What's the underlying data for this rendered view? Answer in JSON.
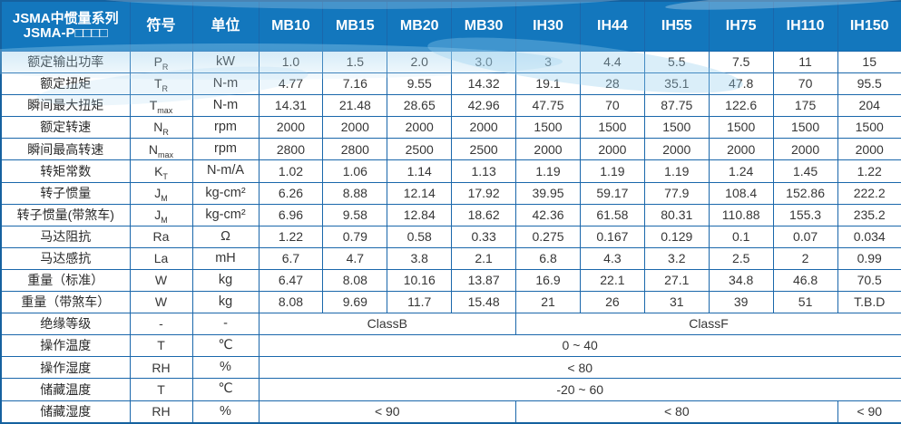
{
  "table": {
    "header": {
      "series_title_line1": "JSMA中惯量系列",
      "series_title_line2": "JSMA-P□□□□",
      "symbol_col": "符号",
      "unit_col": "单位",
      "models": [
        "MB10",
        "MB15",
        "MB20",
        "MB30",
        "IH30",
        "IH44",
        "IH55",
        "IH75",
        "IH110",
        "IH150"
      ]
    },
    "rows": [
      {
        "label": "额定输出功率",
        "symbol": {
          "base": "P",
          "sub": "R"
        },
        "unit": "kW",
        "cells": [
          {
            "t": "1.0"
          },
          {
            "t": "1.5"
          },
          {
            "t": "2.0"
          },
          {
            "t": "3.0"
          },
          {
            "t": "3"
          },
          {
            "t": "4.4"
          },
          {
            "t": "5.5"
          },
          {
            "t": "7.5"
          },
          {
            "t": "11"
          },
          {
            "t": "15"
          }
        ]
      },
      {
        "label": "额定扭矩",
        "symbol": {
          "base": "T",
          "sub": "R"
        },
        "unit": "N-m",
        "cells": [
          {
            "t": "4.77"
          },
          {
            "t": "7.16"
          },
          {
            "t": "9.55"
          },
          {
            "t": "14.32"
          },
          {
            "t": "19.1"
          },
          {
            "t": "28"
          },
          {
            "t": "35.1"
          },
          {
            "t": "47.8"
          },
          {
            "t": "70"
          },
          {
            "t": "95.5"
          }
        ]
      },
      {
        "label": "瞬间最大扭矩",
        "symbol": {
          "base": "T",
          "sub": "max"
        },
        "unit": "N-m",
        "cells": [
          {
            "t": "14.31"
          },
          {
            "t": "21.48"
          },
          {
            "t": "28.65"
          },
          {
            "t": "42.96"
          },
          {
            "t": "47.75"
          },
          {
            "t": "70"
          },
          {
            "t": "87.75"
          },
          {
            "t": "122.6"
          },
          {
            "t": "175"
          },
          {
            "t": "204"
          }
        ]
      },
      {
        "label": "额定转速",
        "symbol": {
          "base": "N",
          "sub": "R"
        },
        "unit": "rpm",
        "cells": [
          {
            "t": "2000"
          },
          {
            "t": "2000"
          },
          {
            "t": "2000"
          },
          {
            "t": "2000"
          },
          {
            "t": "1500"
          },
          {
            "t": "1500"
          },
          {
            "t": "1500"
          },
          {
            "t": "1500"
          },
          {
            "t": "1500"
          },
          {
            "t": "1500"
          }
        ]
      },
      {
        "label": "瞬间最高转速",
        "symbol": {
          "base": "N",
          "sub": "max"
        },
        "unit": "rpm",
        "cells": [
          {
            "t": "2800"
          },
          {
            "t": "2800"
          },
          {
            "t": "2500"
          },
          {
            "t": "2500"
          },
          {
            "t": "2000"
          },
          {
            "t": "2000"
          },
          {
            "t": "2000"
          },
          {
            "t": "2000"
          },
          {
            "t": "2000"
          },
          {
            "t": "2000"
          }
        ]
      },
      {
        "label": "转矩常数",
        "symbol": {
          "base": "K",
          "sub": "T"
        },
        "unit": "N-m/A",
        "cells": [
          {
            "t": "1.02"
          },
          {
            "t": "1.06"
          },
          {
            "t": "1.14"
          },
          {
            "t": "1.13"
          },
          {
            "t": "1.19"
          },
          {
            "t": "1.19"
          },
          {
            "t": "1.19"
          },
          {
            "t": "1.24"
          },
          {
            "t": "1.45"
          },
          {
            "t": "1.22"
          }
        ]
      },
      {
        "label": "转子惯量",
        "symbol": {
          "base": "J",
          "sub": "M"
        },
        "unit": "kg-cm²",
        "cells": [
          {
            "t": "6.26"
          },
          {
            "t": "8.88"
          },
          {
            "t": "12.14"
          },
          {
            "t": "17.92"
          },
          {
            "t": "39.95"
          },
          {
            "t": "59.17"
          },
          {
            "t": "77.9"
          },
          {
            "t": "108.4"
          },
          {
            "t": "152.86"
          },
          {
            "t": "222.2"
          }
        ]
      },
      {
        "label": "转子惯量(带煞车)",
        "symbol": {
          "base": "J",
          "sub": "M"
        },
        "unit": "kg-cm²",
        "cells": [
          {
            "t": "6.96"
          },
          {
            "t": "9.58"
          },
          {
            "t": "12.84"
          },
          {
            "t": "18.62"
          },
          {
            "t": "42.36"
          },
          {
            "t": "61.58"
          },
          {
            "t": "80.31"
          },
          {
            "t": "110.88"
          },
          {
            "t": "155.3"
          },
          {
            "t": "235.2"
          }
        ]
      },
      {
        "label": "马达阻抗",
        "symbol": {
          "base": "Ra",
          "sub": ""
        },
        "unit": "Ω",
        "cells": [
          {
            "t": "1.22"
          },
          {
            "t": "0.79"
          },
          {
            "t": "0.58"
          },
          {
            "t": "0.33"
          },
          {
            "t": "0.275"
          },
          {
            "t": "0.167"
          },
          {
            "t": "0.129"
          },
          {
            "t": "0.1"
          },
          {
            "t": "0.07"
          },
          {
            "t": "0.034"
          }
        ]
      },
      {
        "label": "马达感抗",
        "symbol": {
          "base": "La",
          "sub": ""
        },
        "unit": "mH",
        "cells": [
          {
            "t": "6.7"
          },
          {
            "t": "4.7"
          },
          {
            "t": "3.8"
          },
          {
            "t": "2.1"
          },
          {
            "t": "6.8"
          },
          {
            "t": "4.3"
          },
          {
            "t": "3.2"
          },
          {
            "t": "2.5"
          },
          {
            "t": "2"
          },
          {
            "t": "0.99"
          }
        ]
      },
      {
        "label": "重量（标准）",
        "symbol": {
          "base": "W",
          "sub": ""
        },
        "unit": "kg",
        "cells": [
          {
            "t": "6.47"
          },
          {
            "t": "8.08"
          },
          {
            "t": "10.16"
          },
          {
            "t": "13.87"
          },
          {
            "t": "16.9"
          },
          {
            "t": "22.1"
          },
          {
            "t": "27.1"
          },
          {
            "t": "34.8"
          },
          {
            "t": "46.8"
          },
          {
            "t": "70.5"
          }
        ]
      },
      {
        "label": "重量（带煞车）",
        "symbol": {
          "base": "W",
          "sub": ""
        },
        "unit": "kg",
        "cells": [
          {
            "t": "8.08"
          },
          {
            "t": "9.69"
          },
          {
            "t": "11.7"
          },
          {
            "t": "15.48"
          },
          {
            "t": "21"
          },
          {
            "t": "26"
          },
          {
            "t": "31"
          },
          {
            "t": "39"
          },
          {
            "t": "51"
          },
          {
            "t": "T.B.D"
          }
        ]
      },
      {
        "label": "绝缘等级",
        "symbol": {
          "base": "-",
          "sub": ""
        },
        "unit": "-",
        "cells": [
          {
            "t": "ClassB",
            "span": 4
          },
          {
            "t": "ClassF",
            "span": 6
          }
        ]
      },
      {
        "label": "操作温度",
        "symbol": {
          "base": "T",
          "sub": ""
        },
        "unit": "℃",
        "cells": [
          {
            "t": "0 ~ 40",
            "span": 10
          }
        ]
      },
      {
        "label": "操作湿度",
        "symbol": {
          "base": "RH",
          "sub": ""
        },
        "unit": "%",
        "cells": [
          {
            "t": "< 80",
            "span": 10
          }
        ]
      },
      {
        "label": "储藏温度",
        "symbol": {
          "base": "T",
          "sub": ""
        },
        "unit": "℃",
        "cells": [
          {
            "t": "-20 ~ 60",
            "span": 10
          }
        ]
      },
      {
        "label": "储藏湿度",
        "symbol": {
          "base": "RH",
          "sub": ""
        },
        "unit": "%",
        "cells": [
          {
            "t": "< 90",
            "span": 4
          },
          {
            "t": "< 80",
            "span": 5
          },
          {
            "t": "< 90",
            "span": 1
          }
        ]
      }
    ]
  },
  "colors": {
    "header_bg": "#1377bd",
    "header_text": "#ffffff",
    "border": "#1a67ab",
    "body_text": "#363636",
    "swoosh": "#8bc8ea"
  }
}
